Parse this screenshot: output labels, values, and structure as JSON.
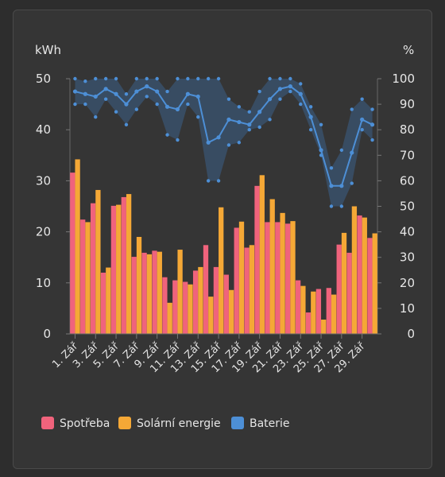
{
  "chart_data": {
    "type": "bar",
    "left_unit": "kWh",
    "right_unit": "%",
    "y_left": {
      "min": 0,
      "max": 50,
      "ticks": [
        0,
        10,
        20,
        30,
        40,
        50
      ]
    },
    "y_right": {
      "min": 0,
      "max": 100,
      "ticks": [
        0,
        10,
        20,
        30,
        40,
        50,
        60,
        70,
        80,
        90,
        100
      ]
    },
    "categories": [
      "1. Zář",
      "2. Zář",
      "3. Zář",
      "4. Zář",
      "5. Zář",
      "6. Zář",
      "7. Zář",
      "8. Zář",
      "9. Zář",
      "10. Zář",
      "11. Zář",
      "12. Zář",
      "13. Zář",
      "14. Zář",
      "15. Zář",
      "16. Zář",
      "17. Zář",
      "18. Zář",
      "19. Zář",
      "20. Zář",
      "21. Zář",
      "22. Zář",
      "23. Zář",
      "24. Zář",
      "25. Zář",
      "26. Zář",
      "27. Zář",
      "28. Zář",
      "29. Zář",
      "30. Zář"
    ],
    "x_tick_labels": [
      "1. Zář",
      "3. Zář",
      "5. Zář",
      "7. Zář",
      "9. Zář",
      "11. Zář",
      "13. Zář",
      "15. Zář",
      "17. Zář",
      "19. Zář",
      "21. Zář",
      "23. Zář",
      "25. Zář",
      "27. Zář",
      "29. Zář"
    ],
    "series": [
      {
        "name": "Spotřeba",
        "axis": "left",
        "color": "#f0637c",
        "values": [
          31.6,
          22.4,
          25.6,
          12.0,
          25.1,
          26.8,
          15.1,
          15.9,
          16.3,
          11.1,
          10.5,
          10.2,
          12.4,
          17.4,
          13.1,
          11.6,
          20.8,
          16.9,
          29.0,
          21.9,
          21.9,
          21.6,
          10.5,
          4.2,
          8.8,
          9.0,
          17.5,
          15.9,
          23.2,
          18.8
        ]
      },
      {
        "name": "Solární energie",
        "axis": "left",
        "color": "#f5a836",
        "values": [
          34.2,
          21.9,
          28.2,
          13.0,
          25.3,
          27.4,
          19.0,
          15.6,
          16.1,
          6.1,
          16.5,
          9.7,
          13.1,
          7.3,
          24.8,
          8.6,
          22.0,
          17.4,
          31.1,
          26.4,
          23.7,
          22.1,
          9.4,
          8.3,
          2.8,
          7.7,
          19.8,
          25.0,
          22.8,
          19.7
        ]
      },
      {
        "name": "Baterie",
        "axis": "right",
        "color": "#4d8fd6",
        "avg": [
          95,
          94,
          93,
          96,
          94,
          90,
          95,
          97,
          95,
          89,
          88,
          94,
          93,
          75,
          77,
          84,
          83,
          82,
          87,
          92,
          96,
          97,
          94,
          85,
          72,
          58,
          58,
          71,
          84,
          82
        ],
        "max": [
          100,
          99,
          100,
          100,
          100,
          94,
          100,
          100,
          100,
          95,
          100,
          100,
          100,
          100,
          100,
          92,
          89,
          87,
          95,
          100,
          100,
          100,
          98,
          89,
          82,
          65,
          72,
          88,
          92,
          88
        ],
        "min": [
          90,
          90,
          85,
          92,
          87,
          82,
          88,
          93,
          90,
          78,
          76,
          90,
          85,
          60,
          60,
          74,
          75,
          80,
          81,
          84,
          92,
          95,
          90,
          80,
          70,
          50,
          50,
          59,
          80,
          76
        ]
      }
    ]
  }
}
